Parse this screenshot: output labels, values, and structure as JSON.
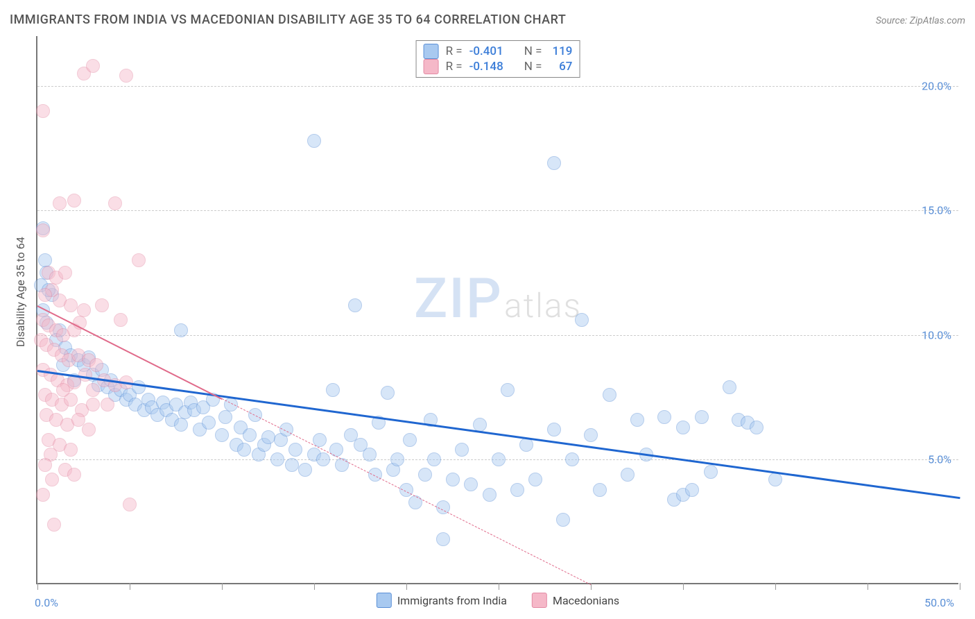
{
  "title": "IMMIGRANTS FROM INDIA VS MACEDONIAN DISABILITY AGE 35 TO 64 CORRELATION CHART",
  "source": "Source: ZipAtlas.com",
  "ylabel": "Disability Age 35 to 64",
  "watermark": {
    "left": "ZIP",
    "right": "atlas"
  },
  "chart": {
    "type": "scatter",
    "background_color": "#ffffff",
    "grid_color": "#cccccc",
    "axis_color": "#777777",
    "xlim": [
      0,
      50
    ],
    "ylim": [
      0,
      22
    ],
    "x_ticks": [
      0,
      5,
      10,
      15,
      20,
      25,
      30,
      35,
      40,
      45,
      50
    ],
    "x_tick_labels": {
      "0": "0.0%",
      "50": "50.0%"
    },
    "y_gridlines": [
      5,
      10,
      15,
      20
    ],
    "y_tick_labels": {
      "5": "5.0%",
      "10": "10.0%",
      "15": "15.0%",
      "20": "20.0%"
    },
    "label_color": "#5a8fd6",
    "label_fontsize": 16,
    "point_radius": 10,
    "point_opacity": 0.45,
    "point_stroke_width": 1.2,
    "series": [
      {
        "name": "Immigrants from India",
        "fill_color": "#a8c9f0",
        "stroke_color": "#5a8fd6",
        "reg_color": "#1f66d0",
        "reg_width": 3,
        "reg_dash": "solid",
        "reg_start": [
          0,
          8.6
        ],
        "reg_end": [
          50,
          3.5
        ],
        "R": "-0.401",
        "N": "119",
        "points": [
          [
            0.3,
            14.3
          ],
          [
            0.4,
            13.0
          ],
          [
            0.5,
            12.5
          ],
          [
            0.2,
            12.0
          ],
          [
            0.8,
            11.6
          ],
          [
            0.3,
            11.0
          ],
          [
            1.2,
            10.2
          ],
          [
            0.5,
            10.5
          ],
          [
            1.0,
            9.8
          ],
          [
            1.5,
            9.5
          ],
          [
            1.8,
            9.2
          ],
          [
            2.2,
            9.0
          ],
          [
            2.5,
            8.8
          ],
          [
            2.8,
            9.1
          ],
          [
            3.0,
            8.4
          ],
          [
            3.5,
            8.6
          ],
          [
            3.3,
            8.0
          ],
          [
            3.8,
            7.9
          ],
          [
            4.0,
            8.2
          ],
          [
            4.2,
            7.6
          ],
          [
            4.5,
            7.8
          ],
          [
            4.8,
            7.4
          ],
          [
            5.0,
            7.6
          ],
          [
            5.3,
            7.2
          ],
          [
            5.5,
            7.9
          ],
          [
            5.8,
            7.0
          ],
          [
            6.0,
            7.4
          ],
          [
            6.2,
            7.1
          ],
          [
            6.5,
            6.8
          ],
          [
            6.8,
            7.3
          ],
          [
            7.0,
            7.0
          ],
          [
            7.3,
            6.6
          ],
          [
            7.5,
            7.2
          ],
          [
            7.8,
            6.4
          ],
          [
            8.0,
            6.9
          ],
          [
            8.3,
            7.3
          ],
          [
            8.5,
            7.0
          ],
          [
            8.8,
            6.2
          ],
          [
            9.0,
            7.1
          ],
          [
            9.3,
            6.5
          ],
          [
            9.5,
            7.4
          ],
          [
            10.0,
            6.0
          ],
          [
            10.2,
            6.7
          ],
          [
            10.5,
            7.2
          ],
          [
            10.8,
            5.6
          ],
          [
            11.0,
            6.3
          ],
          [
            11.2,
            5.4
          ],
          [
            11.5,
            6.0
          ],
          [
            11.8,
            6.8
          ],
          [
            12.0,
            5.2
          ],
          [
            12.3,
            5.6
          ],
          [
            12.5,
            5.9
          ],
          [
            13.0,
            5.0
          ],
          [
            13.2,
            5.8
          ],
          [
            13.5,
            6.2
          ],
          [
            13.8,
            4.8
          ],
          [
            14.0,
            5.4
          ],
          [
            14.5,
            4.6
          ],
          [
            15.0,
            17.8
          ],
          [
            15.0,
            5.2
          ],
          [
            15.3,
            5.8
          ],
          [
            15.5,
            5.0
          ],
          [
            16.0,
            7.8
          ],
          [
            16.2,
            5.4
          ],
          [
            16.5,
            4.8
          ],
          [
            17.0,
            6.0
          ],
          [
            17.2,
            11.2
          ],
          [
            17.5,
            5.6
          ],
          [
            18.0,
            5.2
          ],
          [
            18.3,
            4.4
          ],
          [
            18.5,
            6.5
          ],
          [
            19.0,
            7.7
          ],
          [
            19.3,
            4.6
          ],
          [
            19.5,
            5.0
          ],
          [
            20.0,
            3.8
          ],
          [
            20.2,
            5.8
          ],
          [
            20.5,
            3.3
          ],
          [
            21.0,
            4.4
          ],
          [
            21.3,
            6.6
          ],
          [
            21.5,
            5.0
          ],
          [
            22.0,
            1.8
          ],
          [
            22.0,
            3.1
          ],
          [
            22.5,
            4.2
          ],
          [
            23.0,
            5.4
          ],
          [
            23.5,
            4.0
          ],
          [
            24.0,
            6.4
          ],
          [
            24.5,
            3.6
          ],
          [
            25.0,
            5.0
          ],
          [
            25.5,
            7.8
          ],
          [
            26.0,
            3.8
          ],
          [
            26.5,
            5.6
          ],
          [
            27.0,
            4.2
          ],
          [
            28.0,
            6.2
          ],
          [
            28.0,
            16.9
          ],
          [
            28.5,
            2.6
          ],
          [
            29.0,
            5.0
          ],
          [
            29.5,
            10.6
          ],
          [
            30.0,
            6.0
          ],
          [
            30.5,
            3.8
          ],
          [
            31.0,
            7.6
          ],
          [
            32.0,
            4.4
          ],
          [
            32.5,
            6.6
          ],
          [
            33.0,
            5.2
          ],
          [
            34.0,
            6.7
          ],
          [
            34.5,
            3.4
          ],
          [
            35.0,
            6.3
          ],
          [
            35.0,
            3.6
          ],
          [
            35.5,
            3.8
          ],
          [
            36.0,
            6.7
          ],
          [
            36.5,
            4.5
          ],
          [
            37.5,
            7.9
          ],
          [
            38.0,
            6.6
          ],
          [
            38.5,
            6.5
          ],
          [
            39.0,
            6.3
          ],
          [
            40.0,
            4.2
          ],
          [
            7.8,
            10.2
          ],
          [
            2.0,
            8.2
          ],
          [
            1.4,
            8.8
          ],
          [
            0.6,
            11.8
          ]
        ]
      },
      {
        "name": "Macedonians",
        "fill_color": "#f5b8c8",
        "stroke_color": "#e389a3",
        "reg_color": "#e06a8a",
        "reg_width": 2.5,
        "reg_dash": "dashed",
        "reg_start": [
          0,
          11.2
        ],
        "reg_end": [
          30,
          0
        ],
        "reg_solid_until": 10,
        "R": "-0.148",
        "N": "67",
        "points": [
          [
            2.5,
            20.5
          ],
          [
            3.0,
            20.8
          ],
          [
            4.8,
            20.4
          ],
          [
            0.3,
            19.0
          ],
          [
            1.2,
            15.3
          ],
          [
            2.0,
            15.4
          ],
          [
            4.2,
            15.3
          ],
          [
            0.3,
            14.2
          ],
          [
            0.6,
            12.5
          ],
          [
            1.0,
            12.3
          ],
          [
            1.5,
            12.5
          ],
          [
            0.8,
            11.8
          ],
          [
            0.4,
            11.6
          ],
          [
            1.2,
            11.4
          ],
          [
            1.8,
            11.2
          ],
          [
            2.5,
            11.0
          ],
          [
            3.5,
            11.2
          ],
          [
            0.3,
            10.6
          ],
          [
            0.6,
            10.4
          ],
          [
            1.0,
            10.2
          ],
          [
            1.4,
            10.0
          ],
          [
            2.0,
            10.2
          ],
          [
            4.5,
            10.6
          ],
          [
            5.5,
            13.0
          ],
          [
            0.2,
            9.8
          ],
          [
            0.5,
            9.6
          ],
          [
            0.9,
            9.4
          ],
          [
            1.3,
            9.2
          ],
          [
            1.7,
            9.0
          ],
          [
            2.2,
            9.2
          ],
          [
            2.8,
            9.0
          ],
          [
            3.2,
            8.8
          ],
          [
            0.3,
            8.6
          ],
          [
            0.7,
            8.4
          ],
          [
            1.1,
            8.2
          ],
          [
            1.6,
            8.0
          ],
          [
            2.0,
            8.1
          ],
          [
            2.6,
            8.4
          ],
          [
            3.0,
            7.8
          ],
          [
            3.6,
            8.2
          ],
          [
            4.2,
            8.0
          ],
          [
            4.8,
            8.1
          ],
          [
            0.4,
            7.6
          ],
          [
            0.8,
            7.4
          ],
          [
            1.3,
            7.2
          ],
          [
            1.8,
            7.4
          ],
          [
            2.4,
            7.0
          ],
          [
            3.0,
            7.2
          ],
          [
            3.8,
            7.2
          ],
          [
            0.5,
            6.8
          ],
          [
            1.0,
            6.6
          ],
          [
            1.6,
            6.4
          ],
          [
            2.2,
            6.6
          ],
          [
            2.8,
            6.2
          ],
          [
            0.6,
            5.8
          ],
          [
            1.2,
            5.6
          ],
          [
            0.7,
            5.2
          ],
          [
            1.8,
            5.4
          ],
          [
            0.4,
            4.8
          ],
          [
            1.5,
            4.6
          ],
          [
            2.0,
            4.4
          ],
          [
            0.8,
            4.2
          ],
          [
            0.3,
            3.6
          ],
          [
            5.0,
            3.2
          ],
          [
            0.9,
            2.4
          ],
          [
            1.4,
            7.8
          ],
          [
            2.3,
            10.5
          ]
        ]
      }
    ],
    "bottom_legend": [
      {
        "label": "Immigrants from India",
        "fill": "#a8c9f0",
        "stroke": "#5a8fd6"
      },
      {
        "label": "Macedonians",
        "fill": "#f5b8c8",
        "stroke": "#e389a3"
      }
    ]
  }
}
